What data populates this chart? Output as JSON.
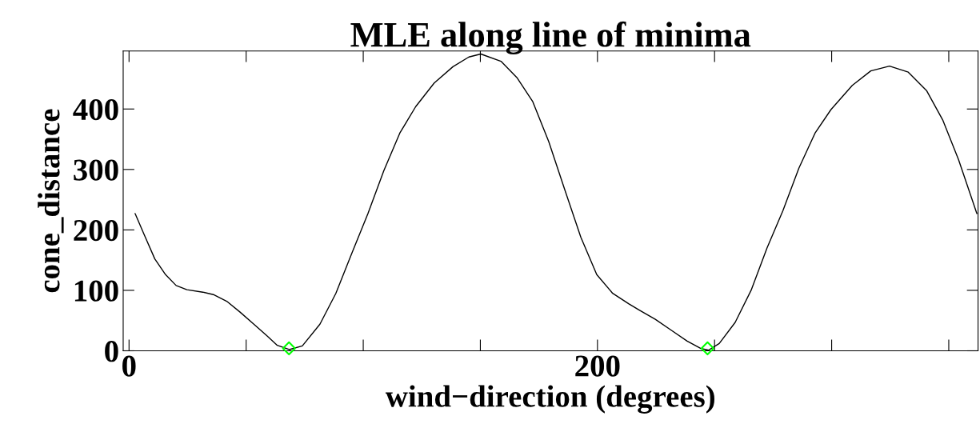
{
  "chart_data": {
    "type": "line",
    "title": "MLE along line of minima",
    "xlabel": "wind−direction (degrees)",
    "ylabel": "cone_distance",
    "xlim": [
      -2.5,
      362.5
    ],
    "ylim": [
      0,
      496
    ],
    "xticks": [
      0,
      {
        "value": 50,
        "label": null
      },
      {
        "value": 100,
        "label": null
      },
      {
        "value": 150,
        "label": null
      },
      200,
      {
        "value": 250,
        "label": null
      },
      {
        "value": 300,
        "label": null
      },
      {
        "value": 350,
        "label": null
      }
    ],
    "yticks": [
      0,
      100,
      200,
      300,
      400
    ],
    "grid": false,
    "legend": false,
    "series": [
      {
        "color": "#000000",
        "marker": "none",
        "line_style": "solid",
        "x": [
          2.6,
          6.5,
          11,
          15.6,
          20.1,
          24.7,
          31.5,
          36,
          41.7,
          47.4,
          53,
          58.8,
          63.3,
          68.4,
          74,
          81.5,
          88.3,
          95.1,
          102,
          108.8,
          115.6,
          122.4,
          130.3,
          138.3,
          145.1,
          150.2,
          158.8,
          165.6,
          172.4,
          179.2,
          186,
          192.9,
          199.7,
          206.5,
          213.3,
          218,
          224.7,
          231.5,
          238.3,
          244,
          247.4,
          252,
          258.8,
          265.6,
          272.4,
          279.2,
          286,
          292.9,
          299.7,
          308.8,
          316.7,
          324.7,
          332.7,
          340.6,
          347.4,
          354.2,
          362
        ],
        "values": [
          227,
          192,
          152,
          126,
          108,
          101,
          97,
          93,
          82,
          64,
          45,
          25,
          9,
          2,
          8,
          44,
          95,
          161,
          227,
          298,
          360,
          404,
          443,
          470,
          486,
          491,
          479,
          452,
          412,
          346,
          267,
          188,
          126,
          95,
          78,
          67,
          52,
          34,
          16,
          4,
          1,
          12,
          47,
          100,
          170,
          232,
          302,
          360,
          399,
          439,
          463,
          471,
          461,
          430,
          382,
          316,
          227
        ]
      },
      {
        "type": "scatter",
        "color": "#00ff00",
        "marker": "diamond",
        "x": [
          68.3,
          247
        ],
        "values": [
          4,
          4
        ]
      }
    ]
  }
}
